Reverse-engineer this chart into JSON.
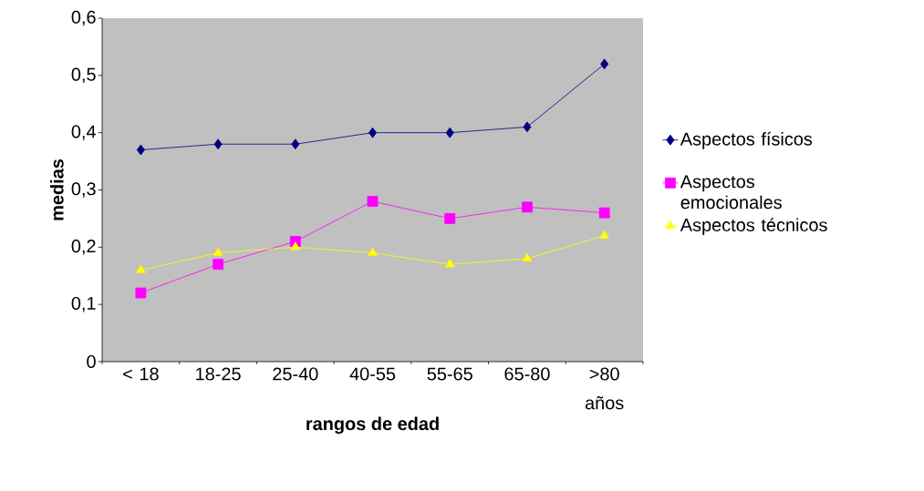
{
  "chart_data": {
    "type": "line",
    "xlabel": "rangos de edad",
    "ylabel": "medias",
    "categories": [
      "< 18",
      "18-25",
      "25-40",
      "40-55",
      "55-65",
      "65-80",
      ">80 años"
    ],
    "series": [
      {
        "name": "Aspectos físicos",
        "color": "#000080",
        "marker": "diamond",
        "values": [
          0.37,
          0.38,
          0.38,
          0.4,
          0.4,
          0.41,
          0.52
        ]
      },
      {
        "name": "Aspectos emocionales",
        "color": "#ff00ff",
        "marker": "square",
        "values": [
          0.12,
          0.17,
          0.21,
          0.28,
          0.25,
          0.27,
          0.26
        ]
      },
      {
        "name": "Aspectos técnicos",
        "color": "#ffff00",
        "marker": "triangle",
        "values": [
          0.16,
          0.19,
          0.2,
          0.19,
          0.17,
          0.18,
          0.22
        ]
      }
    ],
    "ylim": [
      0,
      0.6
    ],
    "yticks": [
      {
        "value": 0,
        "label": "0"
      },
      {
        "value": 0.1,
        "label": "0,1"
      },
      {
        "value": 0.2,
        "label": "0,2"
      },
      {
        "value": 0.3,
        "label": "0,3"
      },
      {
        "value": 0.4,
        "label": "0,4"
      },
      {
        "value": 0.5,
        "label": "0,5"
      },
      {
        "value": 0.6,
        "label": "0,6"
      }
    ],
    "grid": false,
    "legend": "right",
    "line_style": "solid"
  }
}
